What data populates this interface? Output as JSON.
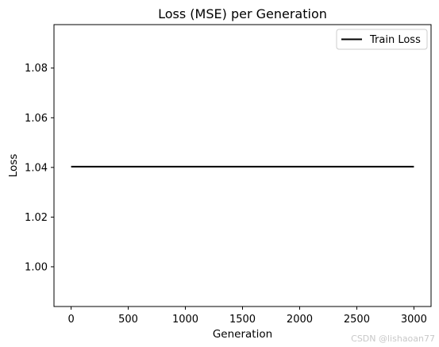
{
  "chart_data": {
    "type": "line",
    "title": "Loss (MSE) per Generation",
    "xlabel": "Generation",
    "ylabel": "Loss",
    "xlim": [
      -150,
      3150
    ],
    "ylim": [
      0.984,
      1.0975
    ],
    "xticks": [
      0,
      500,
      1000,
      1500,
      2000,
      2500,
      3000
    ],
    "yticks": [
      1.0,
      1.02,
      1.04,
      1.06,
      1.08
    ],
    "xtick_labels": [
      "0",
      "500",
      "1000",
      "1500",
      "2000",
      "2500",
      "3000"
    ],
    "ytick_labels": [
      "1.00",
      "1.02",
      "1.04",
      "1.06",
      "1.08"
    ],
    "grid": false,
    "legend_position": "top-right",
    "series": [
      {
        "name": "Train Loss",
        "color": "#000000",
        "x": [
          0,
          500,
          1000,
          1500,
          2000,
          2500,
          3000
        ],
        "y": [
          1.0403,
          1.0403,
          1.0403,
          1.0403,
          1.0403,
          1.0403,
          1.0403
        ]
      }
    ]
  },
  "watermark": "CSDN @lishaoan77"
}
